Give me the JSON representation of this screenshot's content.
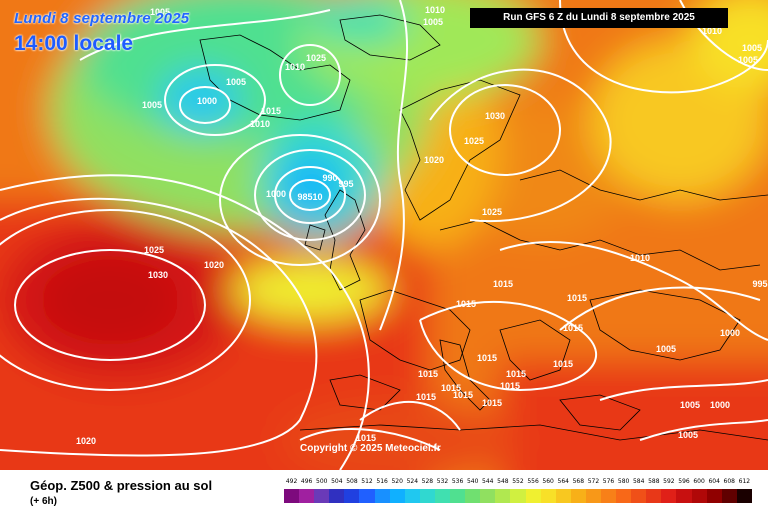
{
  "header": {
    "date": "Lundi 8 septembre 2025",
    "time": "14:00 locale",
    "run": "Run GFS 6 Z du Lundi 8 septembre 2025"
  },
  "copyright": "Copyright © 2025 Meteociel.fr",
  "legend": {
    "title": "Géop. Z500 & pression au sol",
    "subtitle": "(+ 6h)",
    "ticks": [
      "492",
      "496",
      "500",
      "504",
      "508",
      "512",
      "516",
      "520",
      "524",
      "528",
      "532",
      "536",
      "540",
      "544",
      "548",
      "552",
      "556",
      "560",
      "564",
      "568",
      "572",
      "576",
      "580",
      "584",
      "588",
      "592",
      "596",
      "600",
      "604",
      "608",
      "612"
    ],
    "colors": [
      "#7d0a7d",
      "#a020a0",
      "#6a3ab8",
      "#3030c0",
      "#2040e0",
      "#2060ff",
      "#1890ff",
      "#10b0ff",
      "#20c8f0",
      "#30d8d0",
      "#40e0b0",
      "#50e090",
      "#70e070",
      "#90e060",
      "#b0e850",
      "#d0f040",
      "#f0f030",
      "#f8e028",
      "#f8c820",
      "#f8b018",
      "#f89818",
      "#f88018",
      "#f86818",
      "#f05018",
      "#e83818",
      "#e02018",
      "#c81010",
      "#b00808",
      "#900000",
      "#600000",
      "#1a0000"
    ]
  },
  "isobars": [
    {
      "t": "1005"
    },
    {
      "t": "1010"
    },
    {
      "t": "1005"
    },
    {
      "t": "1010"
    },
    {
      "t": "1005"
    },
    {
      "t": "1005"
    },
    {
      "t": "1000"
    },
    {
      "t": "1010"
    },
    {
      "t": "1025"
    },
    {
      "t": "1015"
    },
    {
      "t": "1010"
    },
    {
      "t": "1030"
    },
    {
      "t": "1025"
    },
    {
      "t": "1020"
    },
    {
      "t": "1005"
    },
    {
      "t": "1000"
    },
    {
      "t": "990"
    },
    {
      "t": "995"
    },
    {
      "t": "98510"
    },
    {
      "t": "1025"
    },
    {
      "t": "1025"
    },
    {
      "t": "1030"
    },
    {
      "t": "1020"
    },
    {
      "t": "1010"
    },
    {
      "t": "995"
    },
    {
      "t": "1015"
    },
    {
      "t": "1015"
    },
    {
      "t": "1015"
    },
    {
      "t": "1015"
    },
    {
      "t": "1000"
    },
    {
      "t": "1015"
    },
    {
      "t": "1015"
    },
    {
      "t": "1015"
    },
    {
      "t": "1015"
    },
    {
      "t": "1015"
    },
    {
      "t": "1015"
    },
    {
      "t": "1015"
    },
    {
      "t": "1015"
    },
    {
      "t": "1015"
    },
    {
      "t": "1005"
    },
    {
      "t": "1005"
    },
    {
      "t": "1000"
    },
    {
      "t": "1005"
    },
    {
      "t": "1020"
    },
    {
      "t": "1015"
    },
    {
      "t": "1005"
    }
  ]
}
